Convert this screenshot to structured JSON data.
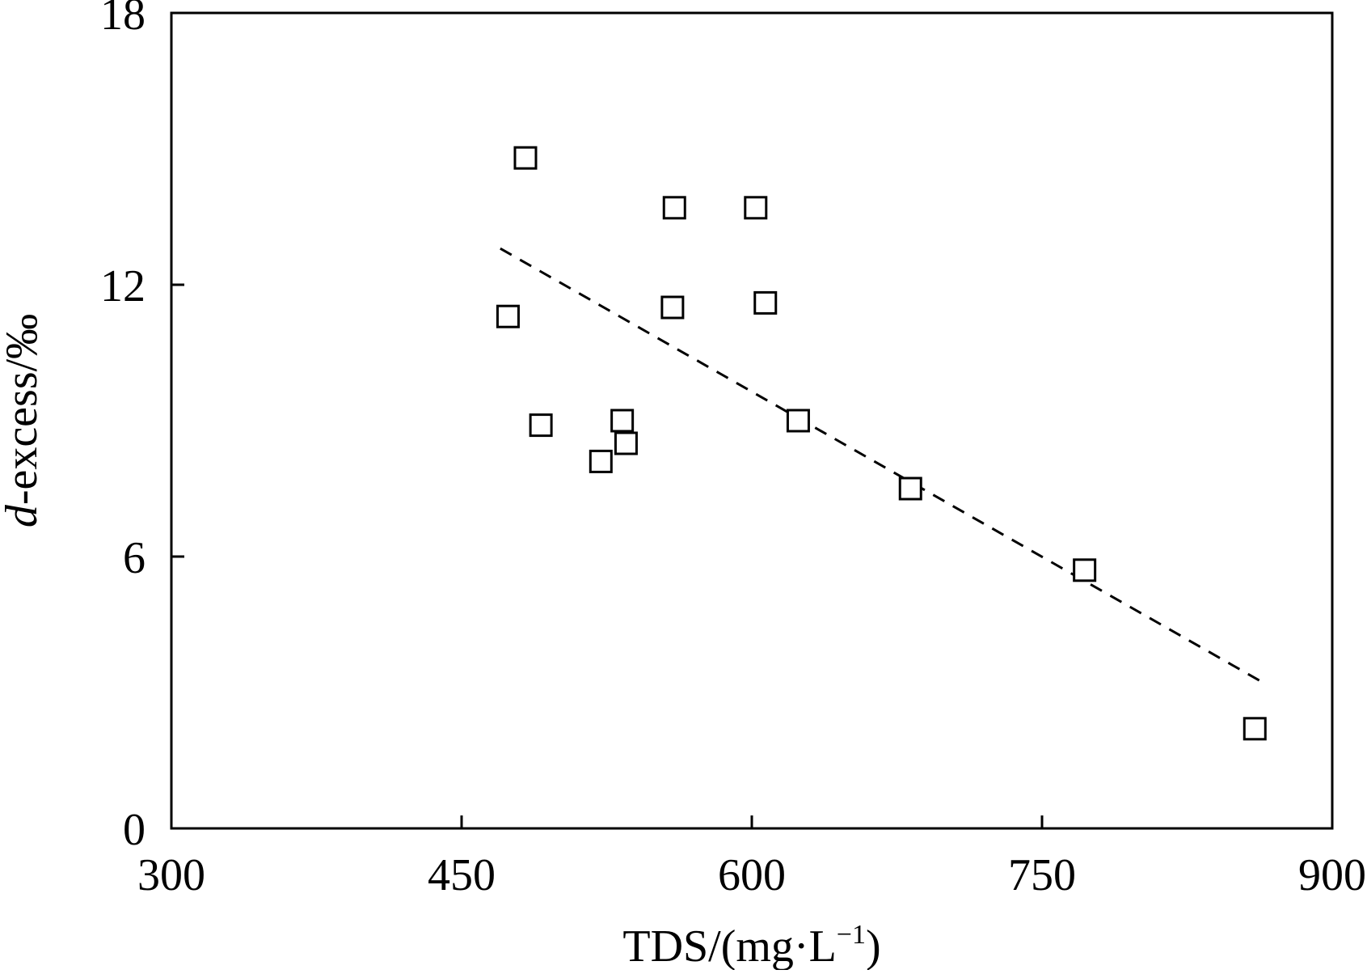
{
  "chart_data": {
    "type": "scatter",
    "title": "",
    "xlabel": "TDS/(mg·L",
    "xlabel_sup": "−1",
    "xlabel_tail": ")",
    "ylabel_italic": "d",
    "ylabel_rest": "-excess/‰",
    "xlim": [
      300,
      900
    ],
    "ylim": [
      0,
      18
    ],
    "xticks": [
      300,
      450,
      600,
      750,
      900
    ],
    "yticks": [
      0,
      6,
      12,
      18
    ],
    "grid": false,
    "legend": "none",
    "series": [
      {
        "marker": "open-square",
        "points": [
          {
            "x": 483,
            "y": 14.8
          },
          {
            "x": 474,
            "y": 11.3
          },
          {
            "x": 491,
            "y": 8.9
          },
          {
            "x": 560,
            "y": 13.7
          },
          {
            "x": 602,
            "y": 13.7
          },
          {
            "x": 559,
            "y": 11.5
          },
          {
            "x": 607,
            "y": 11.6
          },
          {
            "x": 533,
            "y": 9.0
          },
          {
            "x": 535,
            "y": 8.5
          },
          {
            "x": 522,
            "y": 8.1
          },
          {
            "x": 624,
            "y": 9.0
          },
          {
            "x": 682,
            "y": 7.5
          },
          {
            "x": 772,
            "y": 5.7
          },
          {
            "x": 860,
            "y": 2.2
          }
        ]
      }
    ],
    "trendline": {
      "style": "dashed",
      "x": [
        470,
        865
      ],
      "y": [
        12.8,
        3.2
      ]
    }
  }
}
